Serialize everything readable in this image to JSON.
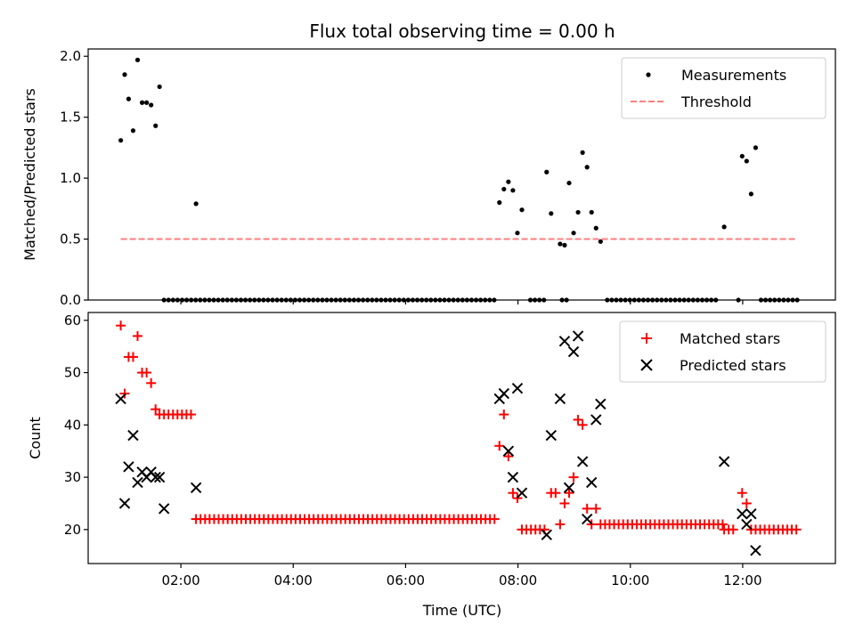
{
  "chart_data": [
    {
      "type": "scatter",
      "title": "Flux total observing time = 0.00 h",
      "xlabel": "",
      "ylabel": "Matched/Predicted stars",
      "xlim": [
        0.35,
        13.65
      ],
      "ylim": [
        0,
        2.06
      ],
      "yticks": [
        0.0,
        0.5,
        1.0,
        1.5,
        2.0
      ],
      "ytick_labels": [
        "0.0",
        "0.5",
        "1.0",
        "1.5",
        "2.0"
      ],
      "xticks": [
        2,
        4,
        6,
        8,
        10,
        12
      ],
      "legend": {
        "placement": "top-right",
        "entries": [
          "Measurements",
          "Threshold"
        ]
      },
      "series": [
        {
          "name": "Measurements",
          "marker": "dot",
          "color": "#000000",
          "points": [
            [
              0.93,
              1.31
            ],
            [
              1.0,
              1.85
            ],
            [
              1.07,
              1.65
            ],
            [
              1.15,
              1.39
            ],
            [
              1.23,
              1.97
            ],
            [
              1.31,
              1.62
            ],
            [
              1.39,
              1.62
            ],
            [
              1.47,
              1.6
            ],
            [
              1.55,
              1.43
            ],
            [
              1.62,
              1.75
            ],
            [
              2.27,
              0.79
            ],
            [
              7.67,
              0.8
            ],
            [
              7.75,
              0.91
            ],
            [
              7.83,
              0.97
            ],
            [
              7.91,
              0.9
            ],
            [
              7.99,
              0.55
            ],
            [
              8.07,
              0.74
            ],
            [
              8.51,
              1.05
            ],
            [
              8.59,
              0.71
            ],
            [
              8.75,
              0.46
            ],
            [
              8.83,
              0.45
            ],
            [
              8.91,
              0.96
            ],
            [
              8.99,
              0.55
            ],
            [
              9.07,
              0.72
            ],
            [
              9.15,
              1.21
            ],
            [
              9.23,
              1.09
            ],
            [
              9.31,
              0.72
            ],
            [
              9.39,
              0.59
            ],
            [
              9.47,
              0.48
            ],
            [
              11.67,
              0.6
            ],
            [
              11.99,
              1.18
            ],
            [
              12.07,
              1.14
            ],
            [
              12.15,
              0.87
            ],
            [
              12.23,
              1.25
            ]
          ]
        },
        {
          "name": "Measurements (zero)",
          "marker": "dot",
          "color": "#000000",
          "range": [
            1.7,
            13.0
          ],
          "value": 0.0,
          "gaps": [
            [
              7.63,
              8.19
            ],
            [
              8.48,
              8.73
            ],
            [
              8.87,
              9.55
            ],
            [
              11.6,
              11.9
            ],
            [
              11.96,
              12.26
            ]
          ]
        },
        {
          "name": "Threshold",
          "style": "dashed",
          "color": "#ff7f7f",
          "x": [
            0.93,
            12.93
          ],
          "y": [
            0.5,
            0.5
          ]
        }
      ]
    },
    {
      "type": "scatter",
      "title": "",
      "xlabel": "Time (UTC)",
      "ylabel": "Count",
      "xlim": [
        0.35,
        13.65
      ],
      "ylim": [
        13.5,
        61.5
      ],
      "yticks": [
        20,
        30,
        40,
        50,
        60
      ],
      "ytick_labels": [
        "20",
        "30",
        "40",
        "50",
        "60"
      ],
      "xticks": [
        2,
        4,
        6,
        8,
        10,
        12
      ],
      "xtick_labels": [
        "02:00",
        "04:00",
        "06:00",
        "08:00",
        "10:00",
        "12:00"
      ],
      "legend": {
        "placement": "top-right",
        "entries": [
          "Matched stars",
          "Predicted stars"
        ]
      },
      "series": [
        {
          "name": "Matched stars",
          "marker": "plus",
          "color": "#ff0000",
          "points": [
            [
              0.93,
              59
            ],
            [
              1.0,
              46
            ],
            [
              1.07,
              53
            ],
            [
              1.15,
              53
            ],
            [
              1.23,
              57
            ],
            [
              1.31,
              50
            ],
            [
              1.39,
              50
            ],
            [
              1.47,
              48
            ],
            [
              1.55,
              43
            ],
            [
              1.62,
              42
            ],
            [
              1.7,
              42
            ],
            [
              1.78,
              42
            ],
            [
              1.86,
              42
            ],
            [
              1.94,
              42
            ],
            [
              2.02,
              42
            ],
            [
              2.1,
              42
            ],
            [
              2.18,
              42
            ],
            [
              7.67,
              36
            ],
            [
              7.75,
              42
            ],
            [
              7.83,
              34
            ],
            [
              7.91,
              27
            ],
            [
              7.99,
              26
            ],
            [
              8.59,
              27
            ],
            [
              8.67,
              27
            ],
            [
              8.75,
              21
            ],
            [
              8.83,
              25
            ],
            [
              8.91,
              27
            ],
            [
              8.99,
              30
            ],
            [
              9.07,
              41
            ],
            [
              9.15,
              40
            ],
            [
              9.23,
              24
            ],
            [
              9.31,
              21
            ],
            [
              9.39,
              24
            ],
            [
              11.99,
              27
            ],
            [
              12.07,
              25
            ]
          ],
          "baseline_runs": [
            {
              "value": 22,
              "start": 2.27,
              "end": 7.59
            },
            {
              "value": 20,
              "start": 8.07,
              "end": 8.51
            },
            {
              "value": 21,
              "start": 9.47,
              "end": 11.67
            },
            {
              "value": 20,
              "start": 11.67,
              "end": 11.91
            },
            {
              "value": 20,
              "start": 12.15,
              "end": 12.99
            }
          ]
        },
        {
          "name": "Predicted stars",
          "marker": "x",
          "color": "#000000",
          "points": [
            [
              0.93,
              45
            ],
            [
              1.0,
              25
            ],
            [
              1.07,
              32
            ],
            [
              1.15,
              38
            ],
            [
              1.23,
              29
            ],
            [
              1.31,
              31
            ],
            [
              1.39,
              30
            ],
            [
              1.47,
              31
            ],
            [
              1.55,
              30
            ],
            [
              1.62,
              30
            ],
            [
              1.7,
              24
            ],
            [
              2.27,
              28
            ],
            [
              7.67,
              45
            ],
            [
              7.75,
              46
            ],
            [
              7.83,
              35
            ],
            [
              7.91,
              30
            ],
            [
              7.99,
              47
            ],
            [
              8.07,
              27
            ],
            [
              8.51,
              19
            ],
            [
              8.59,
              38
            ],
            [
              8.75,
              45
            ],
            [
              8.83,
              56
            ],
            [
              8.91,
              28
            ],
            [
              8.99,
              54
            ],
            [
              9.07,
              57
            ],
            [
              9.15,
              33
            ],
            [
              9.23,
              22
            ],
            [
              9.31,
              29
            ],
            [
              9.39,
              41
            ],
            [
              9.47,
              44
            ],
            [
              11.67,
              33
            ],
            [
              11.99,
              23
            ],
            [
              12.07,
              21
            ],
            [
              12.15,
              23
            ],
            [
              12.23,
              16
            ]
          ]
        }
      ]
    }
  ]
}
